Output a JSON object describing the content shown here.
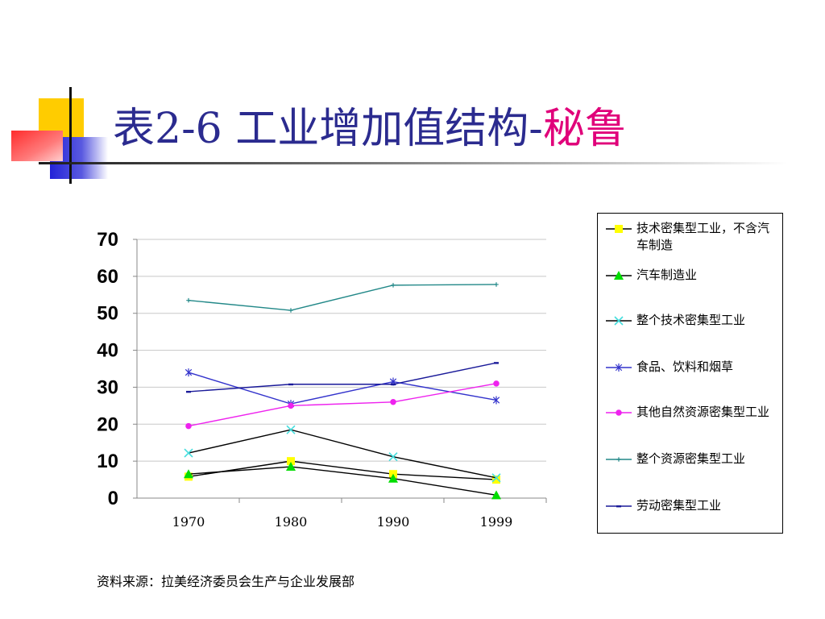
{
  "slide": {
    "title_main": "表2-6 工业增加值结构-",
    "title_accent": "秘鲁",
    "source": "资料来源：拉美经济委员会生产与企业发展部"
  },
  "colors": {
    "title": "#2b2b8f",
    "title_accent": "#e0007a"
  },
  "chart_data": {
    "type": "line",
    "title": "",
    "xlabel": "",
    "ylabel": "",
    "categories": [
      "1970",
      "1980",
      "1990",
      "1999"
    ],
    "ylim": [
      0,
      70
    ],
    "yticks": [
      "0",
      "10",
      "20",
      "30",
      "40",
      "50",
      "60",
      "70"
    ],
    "grid": true,
    "legend_position": "right",
    "series": [
      {
        "name": "技术密集型工业，不含汽车制造",
        "values": [
          5.8,
          10.0,
          6.5,
          5.0
        ],
        "color": "#000000",
        "marker": "square",
        "marker_color": "#ffff00"
      },
      {
        "name": "汽车制造业",
        "values": [
          6.5,
          8.5,
          5.3,
          0.8
        ],
        "color": "#000000",
        "marker": "triangle",
        "marker_color": "#00dd00"
      },
      {
        "name": "整个技术密集型工业",
        "values": [
          12.2,
          18.5,
          11.2,
          5.5
        ],
        "color": "#000000",
        "marker": "x",
        "marker_color": "#44dddd"
      },
      {
        "name": "食品、饮料和烟草",
        "values": [
          34.0,
          25.5,
          31.5,
          26.5
        ],
        "color": "#3333cc",
        "marker": "star",
        "marker_color": "#3333cc"
      },
      {
        "name": "其他自然资源密集型工业",
        "values": [
          19.5,
          25.0,
          26.0,
          31.0
        ],
        "color": "#ee22ee",
        "marker": "circle",
        "marker_color": "#ee22ee"
      },
      {
        "name": "整个资源密集型工业",
        "values": [
          53.5,
          50.8,
          57.6,
          57.8
        ],
        "color": "#228888",
        "marker": "plus",
        "marker_color": "#228888"
      },
      {
        "name": "劳动密集型工业",
        "values": [
          28.8,
          30.8,
          30.8,
          36.6
        ],
        "color": "#1a1a99",
        "marker": "dash",
        "marker_color": "#1a1a99"
      }
    ]
  }
}
